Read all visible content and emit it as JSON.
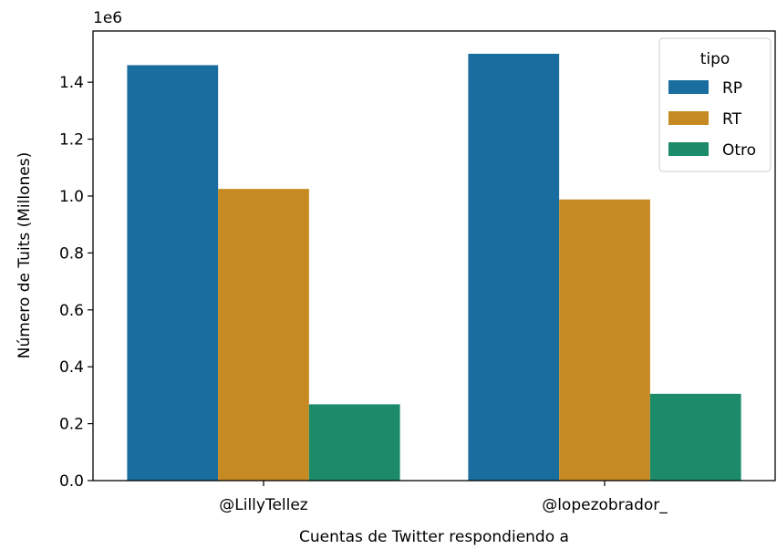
{
  "chart_data": {
    "type": "bar",
    "categories": [
      "@LillyTellez",
      "@lopezobrador_"
    ],
    "series": [
      {
        "name": "RP",
        "values": [
          1460000,
          1500000
        ],
        "color": "#1a6e9f"
      },
      {
        "name": "RT",
        "values": [
          1025000,
          988000
        ],
        "color": "#c68a22"
      },
      {
        "name": "Otro",
        "values": [
          268000,
          305000
        ],
        "color": "#1b8b69"
      }
    ],
    "xlabel": "Cuentas de Twitter respondiendo a",
    "ylabel": "Número de Tuits (Millones)",
    "ylim": [
      0,
      1580000
    ],
    "yticks": [
      "0.0",
      "0.2",
      "0.4",
      "0.6",
      "0.8",
      "1.0",
      "1.2",
      "1.4"
    ],
    "ytick_values": [
      0,
      200000,
      400000,
      600000,
      800000,
      1000000,
      1200000,
      1400000
    ],
    "offset_label": "1e6",
    "legend": {
      "title": "tipo",
      "placement": "top-right"
    },
    "grid": false
  }
}
